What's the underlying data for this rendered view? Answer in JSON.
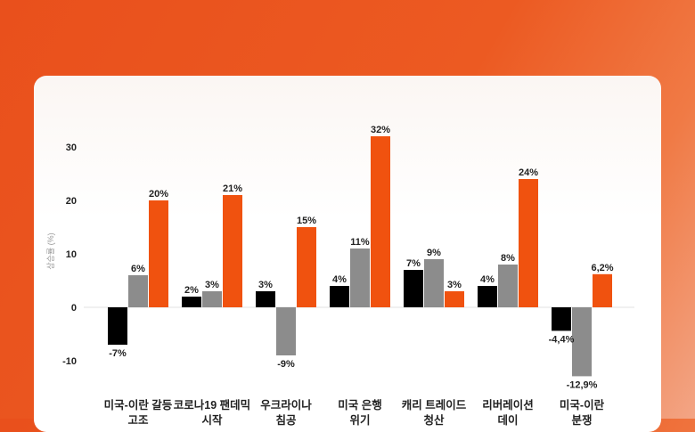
{
  "chart_data": {
    "type": "bar",
    "ylabel": "상승률 (%)",
    "ylim": [
      -10,
      30
    ],
    "yticks": [
      -10,
      0,
      10,
      20,
      30
    ],
    "grid": false,
    "categories": [
      "미국-이란 갈등 고조",
      "코로나19 팬데믹 시작",
      "우크라이나 침공",
      "미국 은행 위기",
      "캐리 트레이드 청산",
      "리버레이션 데이",
      "미국-이란 분쟁"
    ],
    "series": [
      {
        "color": "#000000",
        "values": [
          -7,
          2,
          3,
          4,
          7,
          4,
          -4.4
        ],
        "labels": [
          "-7%",
          "2%",
          "3%",
          "4%",
          "7%",
          "4%",
          "-4,4%"
        ]
      },
      {
        "color": "#8c8c8c",
        "values": [
          6,
          3,
          -9,
          11,
          9,
          8,
          -12.9
        ],
        "labels": [
          "6%",
          "3%",
          "-9%",
          "11%",
          "9%",
          "8%",
          "-12,9%"
        ]
      },
      {
        "color": "#f0520f",
        "values": [
          20,
          21,
          15,
          32,
          3,
          24,
          6.2
        ],
        "labels": [
          "20%",
          "21%",
          "15%",
          "32%",
          "3%",
          "24%",
          "6,2%"
        ]
      }
    ]
  }
}
